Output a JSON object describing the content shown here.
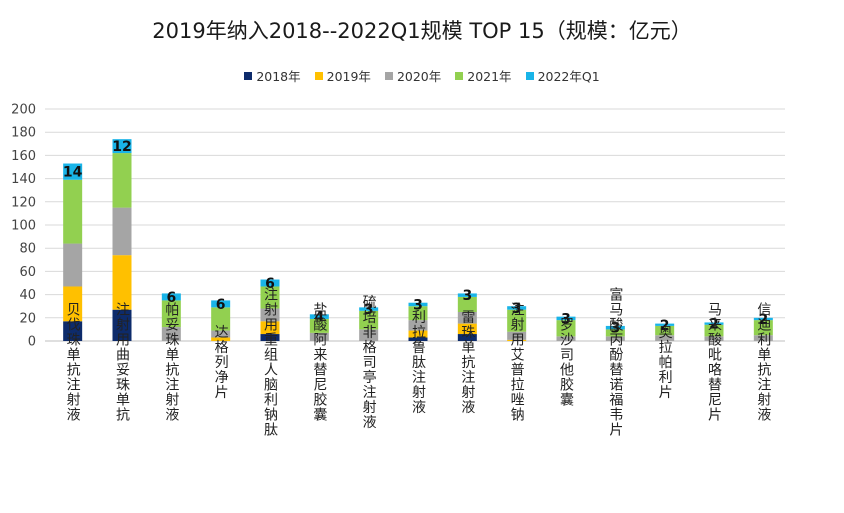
{
  "chart_data": {
    "type": "bar",
    "stacked": true,
    "title": "2019年纳入2018--2022Q1规模 TOP 15（规模：亿元）",
    "ylim": [
      0,
      200
    ],
    "yticks": [
      0,
      20,
      40,
      60,
      80,
      100,
      120,
      140,
      160,
      180,
      200
    ],
    "grid": true,
    "legend_position": "top",
    "categories": [
      "贝伐珠单抗注射液",
      "注射用曲妥珠单抗",
      "帕妥珠单抗注射液",
      "达格列净片",
      "注射用重组人脑利钠肽",
      "盐酸阿来替尼胶囊",
      "硫培非格司亭注射液",
      "利拉鲁肽注射液",
      "雷珠单抗注射液",
      "注射用艾普拉唑钠",
      "罗沙司他胶囊",
      "富马酸丙酚替诺福韦片",
      "奥拉帕利片",
      "马来酸吡咯替尼片",
      "信迪利单抗注射液"
    ],
    "series": [
      {
        "name": "2018年",
        "color": "#0d2b6b",
        "values": [
          17,
          27,
          0,
          0,
          6,
          0,
          0,
          3,
          6,
          0,
          0,
          0,
          0,
          0,
          0
        ]
      },
      {
        "name": "2019年",
        "color": "#ffc000",
        "values": [
          30,
          47,
          0,
          3,
          11,
          0,
          0,
          6,
          9,
          1,
          0,
          0,
          0,
          0,
          0
        ]
      },
      {
        "name": "2020年",
        "color": "#a5a5a5",
        "values": [
          37,
          41,
          12,
          6,
          11,
          7,
          10,
          9,
          10,
          7,
          4,
          4,
          5,
          4,
          5
        ]
      },
      {
        "name": "2021年",
        "color": "#92d050",
        "values": [
          55,
          47,
          23,
          20,
          19,
          12,
          16,
          12,
          13,
          19,
          14,
          6,
          8,
          10,
          13
        ]
      },
      {
        "name": "2022年Q1",
        "color": "#19b4e8",
        "values": [
          14,
          12,
          6,
          6,
          6,
          4,
          3,
          3,
          3,
          3,
          3,
          3,
          2,
          2,
          2
        ]
      }
    ],
    "data_labels": [
      14,
      12,
      6,
      6,
      6,
      4,
      3,
      3,
      3,
      3,
      3,
      3,
      2,
      2,
      2
    ]
  }
}
